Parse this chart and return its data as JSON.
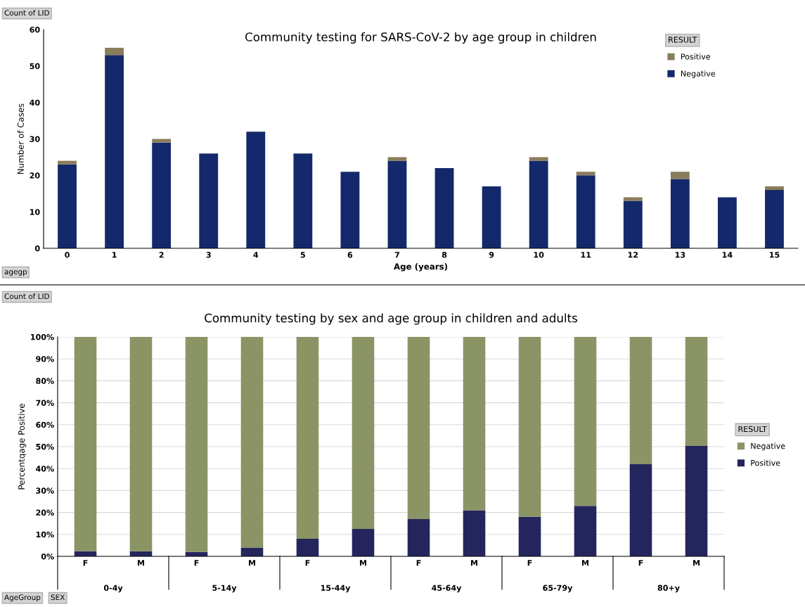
{
  "chart_data": [
    {
      "type": "bar",
      "stacked": true,
      "title": "Community testing for SARS-CoV-2 by age group in children",
      "xlabel": "Age (years)",
      "ylabel": "Number of Cases",
      "legend_title": "RESULT",
      "legend": "top right",
      "grid": false,
      "categories": [
        "0",
        "1",
        "2",
        "3",
        "4",
        "5",
        "6",
        "7",
        "8",
        "9",
        "10",
        "11",
        "12",
        "13",
        "14",
        "15"
      ],
      "ylim": [
        0,
        60
      ],
      "yticks": [
        0,
        10,
        20,
        30,
        40,
        50,
        60
      ],
      "series": [
        {
          "name": "Negative",
          "color": "#14296b",
          "values": [
            23,
            53,
            29,
            26,
            32,
            26,
            21,
            24,
            22,
            17,
            24,
            20,
            13,
            19,
            14,
            16
          ]
        },
        {
          "name": "Positive",
          "color": "#8a7d5c",
          "values": [
            1,
            2,
            1,
            0,
            0,
            0,
            0,
            1,
            0,
            0,
            1,
            1,
            1,
            2,
            0,
            1
          ]
        }
      ],
      "annotations": [
        "Count of LID",
        "agegp"
      ]
    },
    {
      "type": "bar",
      "stacked": true,
      "title": "Community testing by sex and age group in children and adults",
      "ylabel": "Percentqage Positive",
      "legend_title": "RESULT",
      "legend": "right",
      "grid": "y",
      "categories": [
        "F",
        "M",
        "F",
        "M",
        "F",
        "M",
        "F",
        "M",
        "F",
        "M",
        "F",
        "M"
      ],
      "ylim": [
        0,
        100
      ],
      "yticks": [
        {
          "value": 0,
          "label": "0%"
        },
        {
          "value": 10,
          "label": "10%"
        },
        {
          "value": 20,
          "label": "20%"
        },
        {
          "value": 30,
          "label": "30%"
        },
        {
          "value": 40,
          "label": "40%"
        },
        {
          "value": 50,
          "label": "50%"
        },
        {
          "value": 60,
          "label": "60%"
        },
        {
          "value": 70,
          "label": "70%"
        },
        {
          "value": 80,
          "label": "80%"
        },
        {
          "value": 90,
          "label": "90%"
        },
        {
          "value": 100,
          "label": "100%"
        }
      ],
      "series": [
        {
          "name": "Positive",
          "color": "#25255e",
          "values": [
            2.3,
            2.3,
            2,
            4,
            8,
            12.5,
            17,
            21,
            18,
            23,
            42,
            50.5
          ]
        },
        {
          "name": "Negative",
          "color": "#8b9465",
          "values": [
            97.7,
            97.7,
            98,
            96,
            92,
            87.5,
            83,
            79,
            82,
            77,
            58,
            49.5
          ]
        }
      ],
      "annotations": [
        "Count of LID",
        "AgeGroup",
        "SEX",
        "0-4y",
        "5-14y",
        "15-44y",
        "45-64y",
        "65-79y",
        "80+y"
      ]
    }
  ]
}
